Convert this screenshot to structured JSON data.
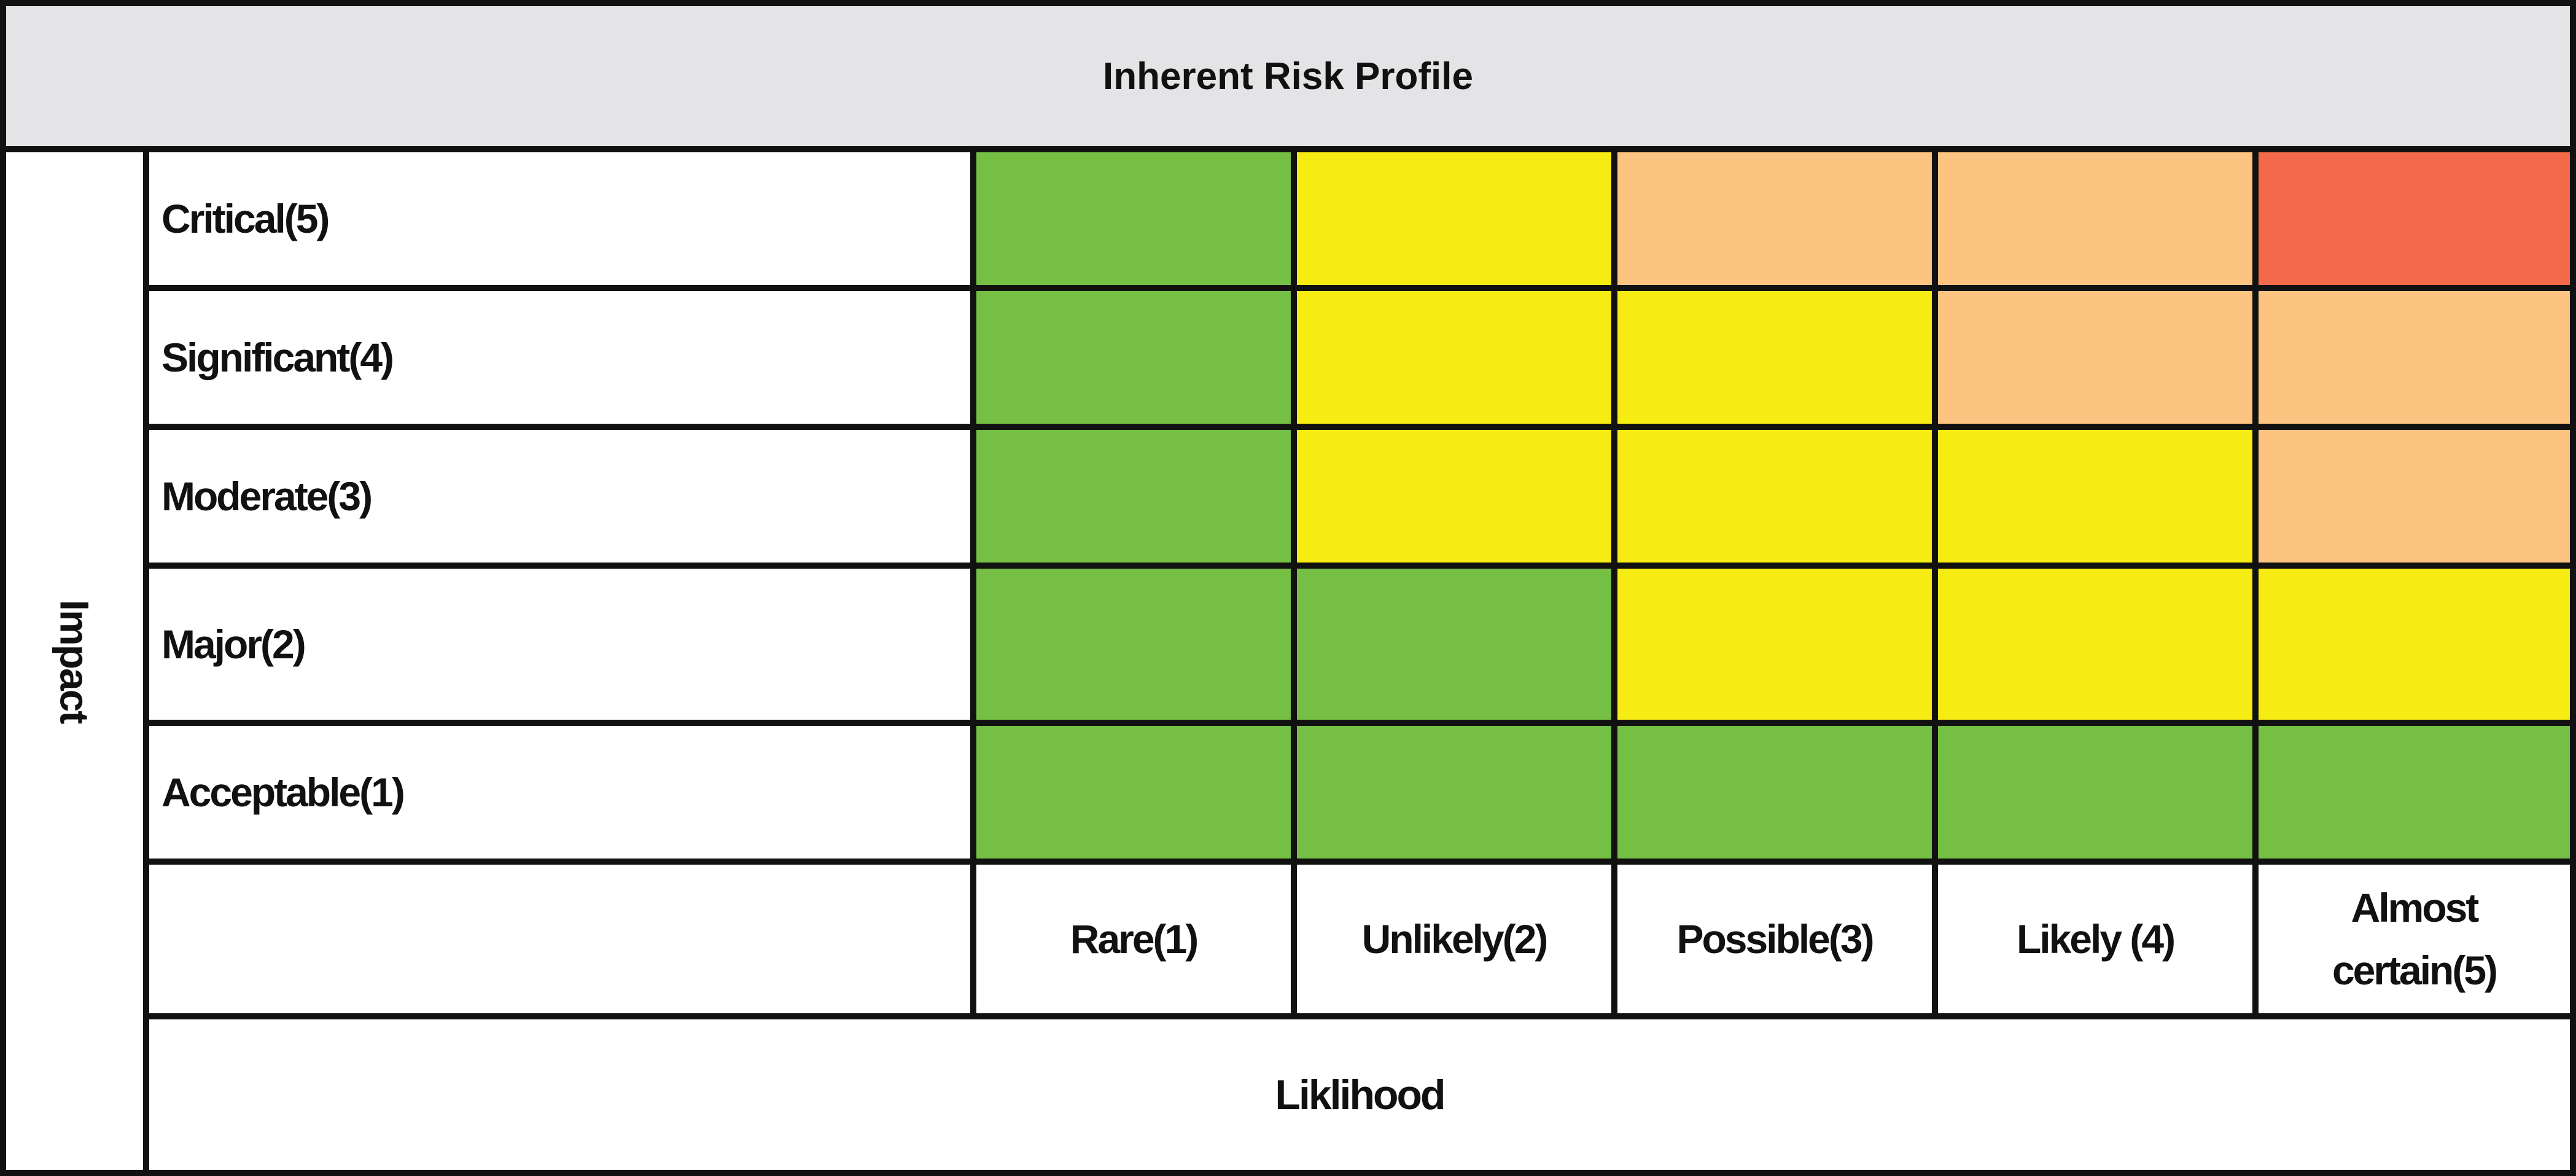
{
  "title": "Inherent Risk Profile",
  "y_axis_label": "Impact",
  "x_axis_label": "Liklihood",
  "impact_levels": [
    {
      "label": "Critical(5)"
    },
    {
      "label": "Significant(4)"
    },
    {
      "label": "Moderate(3)"
    },
    {
      "label": "Major(2)"
    },
    {
      "label": "Acceptable(1)"
    }
  ],
  "likelihood_levels": [
    {
      "label": "Rare(1)"
    },
    {
      "label": "Unlikely(2)"
    },
    {
      "label": "Possible(3)"
    },
    {
      "label": "Likely (4)"
    },
    {
      "label": "Almost certain(5)"
    }
  ],
  "colors": {
    "green": "#75bf45",
    "yellow": "#f6eb12",
    "orange": "#fdc381",
    "red": "#f26a49"
  },
  "matrix": [
    [
      "green",
      "yellow",
      "orange",
      "orange",
      "red"
    ],
    [
      "green",
      "yellow",
      "yellow",
      "orange",
      "orange"
    ],
    [
      "green",
      "yellow",
      "yellow",
      "yellow",
      "orange"
    ],
    [
      "green",
      "green",
      "yellow",
      "yellow",
      "yellow"
    ],
    [
      "green",
      "green",
      "green",
      "green",
      "green"
    ]
  ]
}
